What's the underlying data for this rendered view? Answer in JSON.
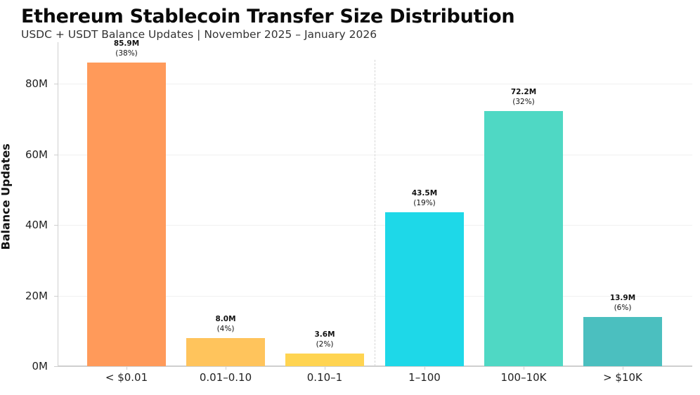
{
  "chart_data": {
    "type": "bar",
    "title": "Ethereum Stablecoin Transfer Size Distribution",
    "subtitle": "USDC + USDT Balance Updates | November 2025 – January 2026",
    "xlabel": "",
    "ylabel": "Balance Updates",
    "categories": [
      "< $0.01",
      "0.01–0.10",
      "0.10–1",
      "1–100",
      "100–10K",
      "> $10K"
    ],
    "values": [
      85.9,
      8.0,
      3.6,
      43.5,
      72.2,
      13.9
    ],
    "value_unit": "M",
    "value_labels": [
      "85.9M",
      "8.0M",
      "3.6M",
      "43.5M",
      "72.2M",
      "13.9M"
    ],
    "percent_labels": [
      "(38%)",
      "(4%)",
      "(2%)",
      "(19%)",
      "(32%)",
      "(6%)"
    ],
    "colors": [
      "#ff9a5a",
      "#ffc45c",
      "#ffd451",
      "#1ed8e8",
      "#4fd8c4",
      "#4bbfbf"
    ],
    "ylim": [
      0,
      90
    ],
    "yticks": [
      0,
      20,
      40,
      60,
      80
    ],
    "ytick_labels": [
      "0M",
      "20M",
      "40M",
      "60M",
      "80M"
    ],
    "grid": "horizontal",
    "legend": null,
    "annotations": [
      "dashed vertical divider between '0.10–1' and '1–100'"
    ]
  },
  "header": {
    "title": "Ethereum Stablecoin Transfer Size Distribution",
    "subtitle": "USDC + USDT Balance Updates | November 2025 – January 2026"
  },
  "axes": {
    "ylabel": "Balance Updates",
    "yticks": [
      "0M",
      "20M",
      "40M",
      "60M",
      "80M"
    ]
  },
  "bars": [
    {
      "category": "< $0.01",
      "value": "85.9M",
      "pct": "(38%)"
    },
    {
      "category": "0.01–0.10",
      "value": "8.0M",
      "pct": "(4%)"
    },
    {
      "category": "0.10–1",
      "value": "3.6M",
      "pct": "(2%)"
    },
    {
      "category": "1–100",
      "value": "43.5M",
      "pct": "(19%)"
    },
    {
      "category": "100–10K",
      "value": "72.2M",
      "pct": "(32%)"
    },
    {
      "category": "> $10K",
      "value": "13.9M",
      "pct": "(6%)"
    }
  ]
}
